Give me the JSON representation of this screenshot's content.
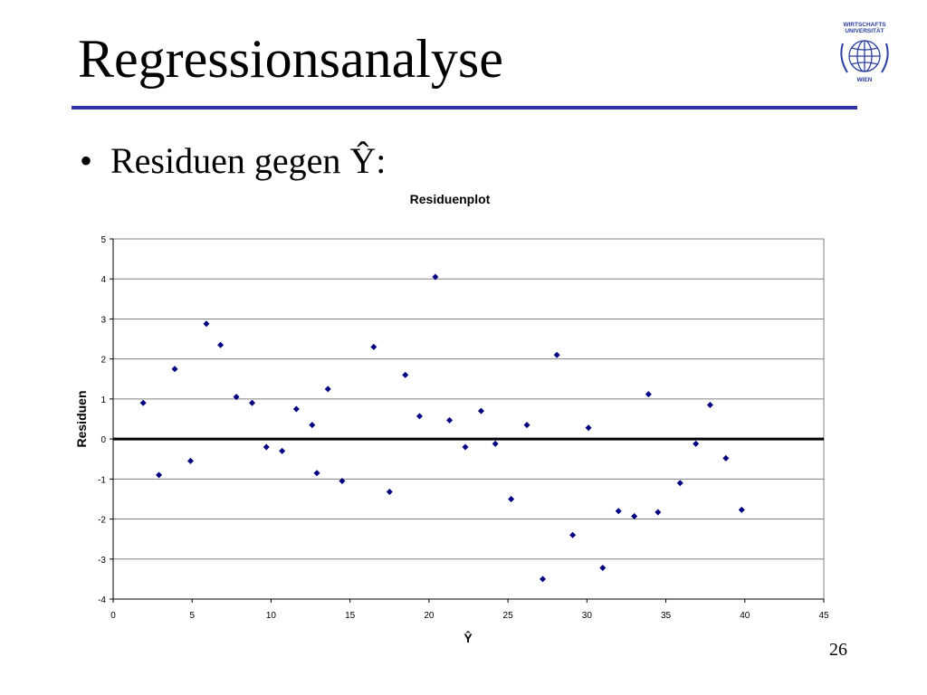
{
  "slide": {
    "title": "Regressionsanalyse",
    "bullet_marker": "•",
    "bullet_text": "Residuen gegen Ŷ:",
    "page_number": "26",
    "accent_color": "#3333aa"
  },
  "logo": {
    "lines": [
      "WIRTSCHAFTS",
      "UNIVERSITÄT",
      "WIEN"
    ],
    "color": "#2b3f9f"
  },
  "chart_data": {
    "type": "scatter",
    "title": "Residuenplot",
    "xlabel": "Ŷ",
    "ylabel": "Residuen",
    "xlim": [
      0,
      45
    ],
    "ylim": [
      -4,
      5
    ],
    "x_ticks": [
      0,
      5,
      10,
      15,
      20,
      25,
      30,
      35,
      40,
      45
    ],
    "y_ticks": [
      -4,
      -3,
      -2,
      -1,
      0,
      1,
      2,
      3,
      4,
      5
    ],
    "grid": true,
    "legend": "none",
    "marker_color": "#000080",
    "zero_line": true,
    "points": [
      [
        1.9,
        0.9
      ],
      [
        2.9,
        -0.9
      ],
      [
        3.9,
        1.75
      ],
      [
        4.9,
        -0.55
      ],
      [
        5.9,
        2.88
      ],
      [
        6.8,
        2.35
      ],
      [
        7.8,
        1.05
      ],
      [
        8.8,
        0.9
      ],
      [
        9.7,
        -0.2
      ],
      [
        10.7,
        -0.3
      ],
      [
        11.6,
        0.75
      ],
      [
        12.6,
        0.35
      ],
      [
        12.9,
        -0.85
      ],
      [
        13.6,
        1.25
      ],
      [
        14.5,
        -1.05
      ],
      [
        16.5,
        2.3
      ],
      [
        17.5,
        -1.32
      ],
      [
        18.5,
        1.6
      ],
      [
        19.4,
        0.57
      ],
      [
        20.4,
        4.05
      ],
      [
        21.3,
        0.47
      ],
      [
        22.3,
        -0.2
      ],
      [
        23.3,
        0.7
      ],
      [
        24.2,
        -0.12
      ],
      [
        25.2,
        -1.5
      ],
      [
        26.2,
        0.35
      ],
      [
        27.2,
        -3.5
      ],
      [
        28.1,
        2.1
      ],
      [
        29.1,
        -2.4
      ],
      [
        30.1,
        0.28
      ],
      [
        31.0,
        -3.22
      ],
      [
        32.0,
        -1.8
      ],
      [
        33.0,
        -1.93
      ],
      [
        33.9,
        1.12
      ],
      [
        34.5,
        -1.83
      ],
      [
        35.9,
        -1.1
      ],
      [
        36.9,
        -0.12
      ],
      [
        37.8,
        0.85
      ],
      [
        38.8,
        -0.48
      ],
      [
        39.8,
        -1.77
      ]
    ]
  }
}
